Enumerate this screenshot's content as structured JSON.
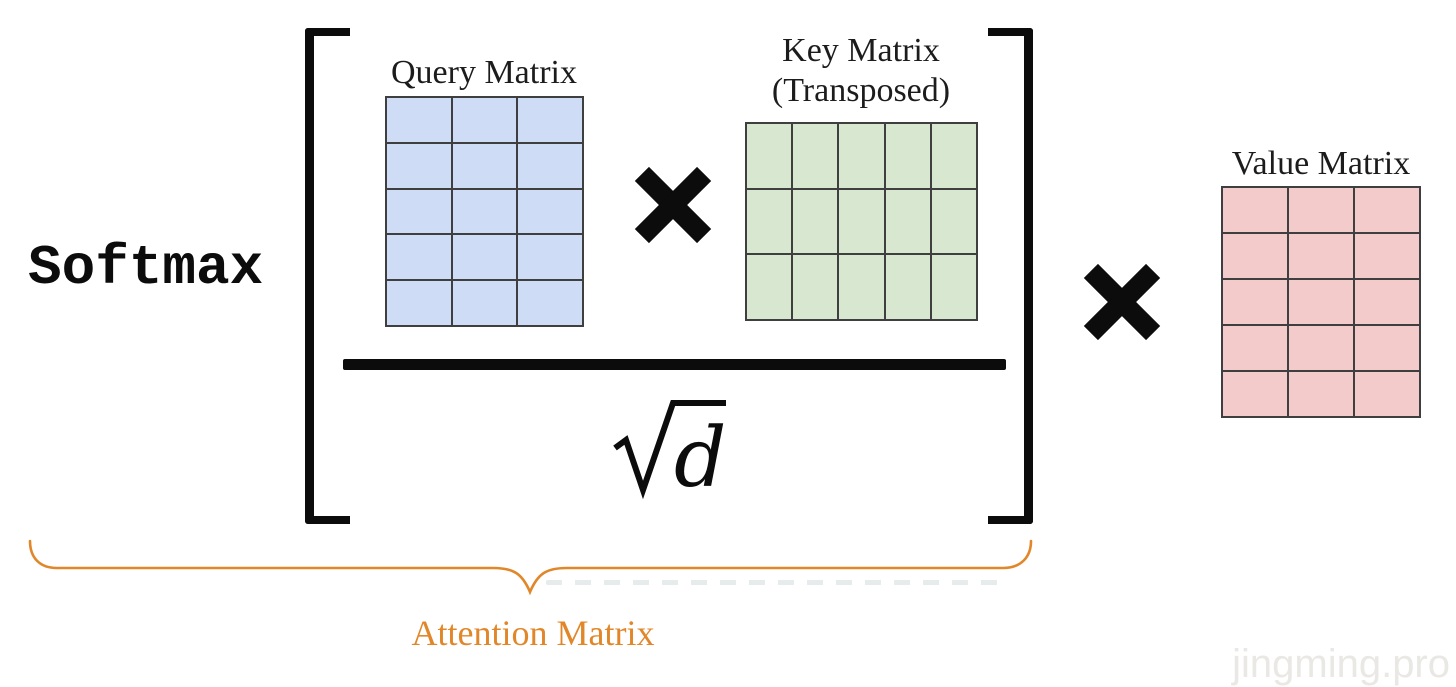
{
  "formula": {
    "softmax_label": "Softmax",
    "numerator_operator": "×",
    "outer_operator": "×",
    "denominator": {
      "radicand": "d"
    }
  },
  "matrices": {
    "query": {
      "label": "Query Matrix",
      "rows": 5,
      "cols": 3,
      "fill": "#cfdcf5",
      "border": "#3f3f3f"
    },
    "key": {
      "label_line1": "Key Matrix",
      "label_line2": "(Transposed)",
      "rows": 3,
      "cols": 5,
      "fill": "#d8e7d0",
      "border": "#3f3f3f"
    },
    "value": {
      "label": "Value Matrix",
      "rows": 5,
      "cols": 3,
      "fill": "#f3cbcb",
      "border": "#3f3f3f"
    }
  },
  "annotation": {
    "label": "Attention Matrix",
    "color": "#e1872a"
  },
  "watermark": {
    "text": "jingming.pro"
  }
}
